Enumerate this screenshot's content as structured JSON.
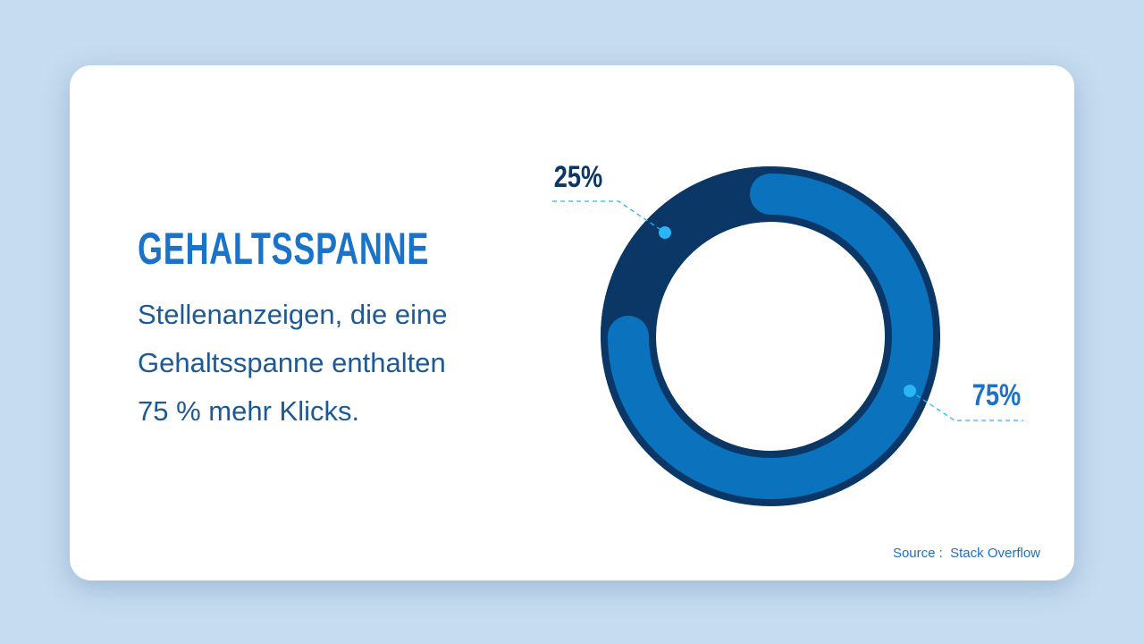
{
  "chart_data": {
    "type": "donut",
    "title": "GEHALTSSPANNE",
    "subtitle": "Stellenanzeigen, die eine Gehaltsspanne enthalten 75 % mehr Klicks.",
    "source": "Source :  Stack Overflow",
    "values": [
      25,
      75
    ],
    "value_labels": [
      "25%",
      "75%"
    ],
    "colors": [
      "#0b3766",
      "#0b72be"
    ]
  }
}
